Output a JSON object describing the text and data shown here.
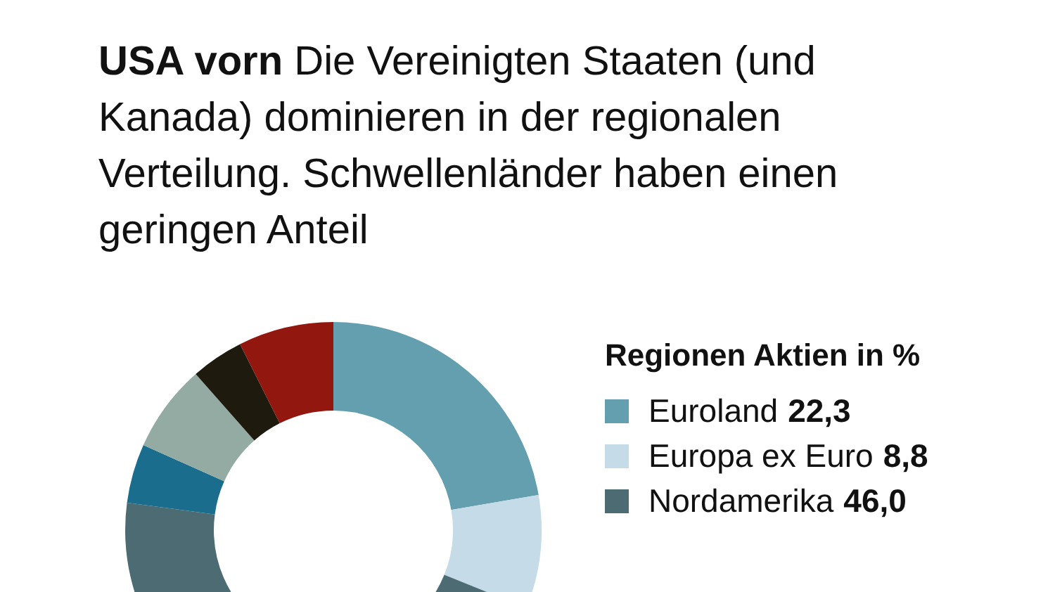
{
  "chart_data": {
    "type": "donut",
    "title": "USA vorn",
    "subtitle": "Die Vereinigten Staaten (und Kanada) dominieren in der regionalen Verteilung. Schwellenländer haben einen geringen Anteil",
    "legend_title": "Regionen Aktien in %",
    "legend": "right",
    "categories": [
      "Euroland",
      "Europa ex Euro",
      "Nordamerika",
      null,
      null,
      null,
      null
    ],
    "values": [
      22.3,
      8.8,
      46.0,
      4.6,
      6.8,
      4.1,
      7.4
    ],
    "value_labels": [
      "22,3",
      "8,8",
      "46,0",
      null,
      null,
      null,
      null
    ],
    "colors": [
      "#639fae",
      "#c5dbe8",
      "#4d6b72",
      "#1a6d8c",
      "#93aba3",
      "#1f1a0e",
      "#92170f"
    ]
  }
}
